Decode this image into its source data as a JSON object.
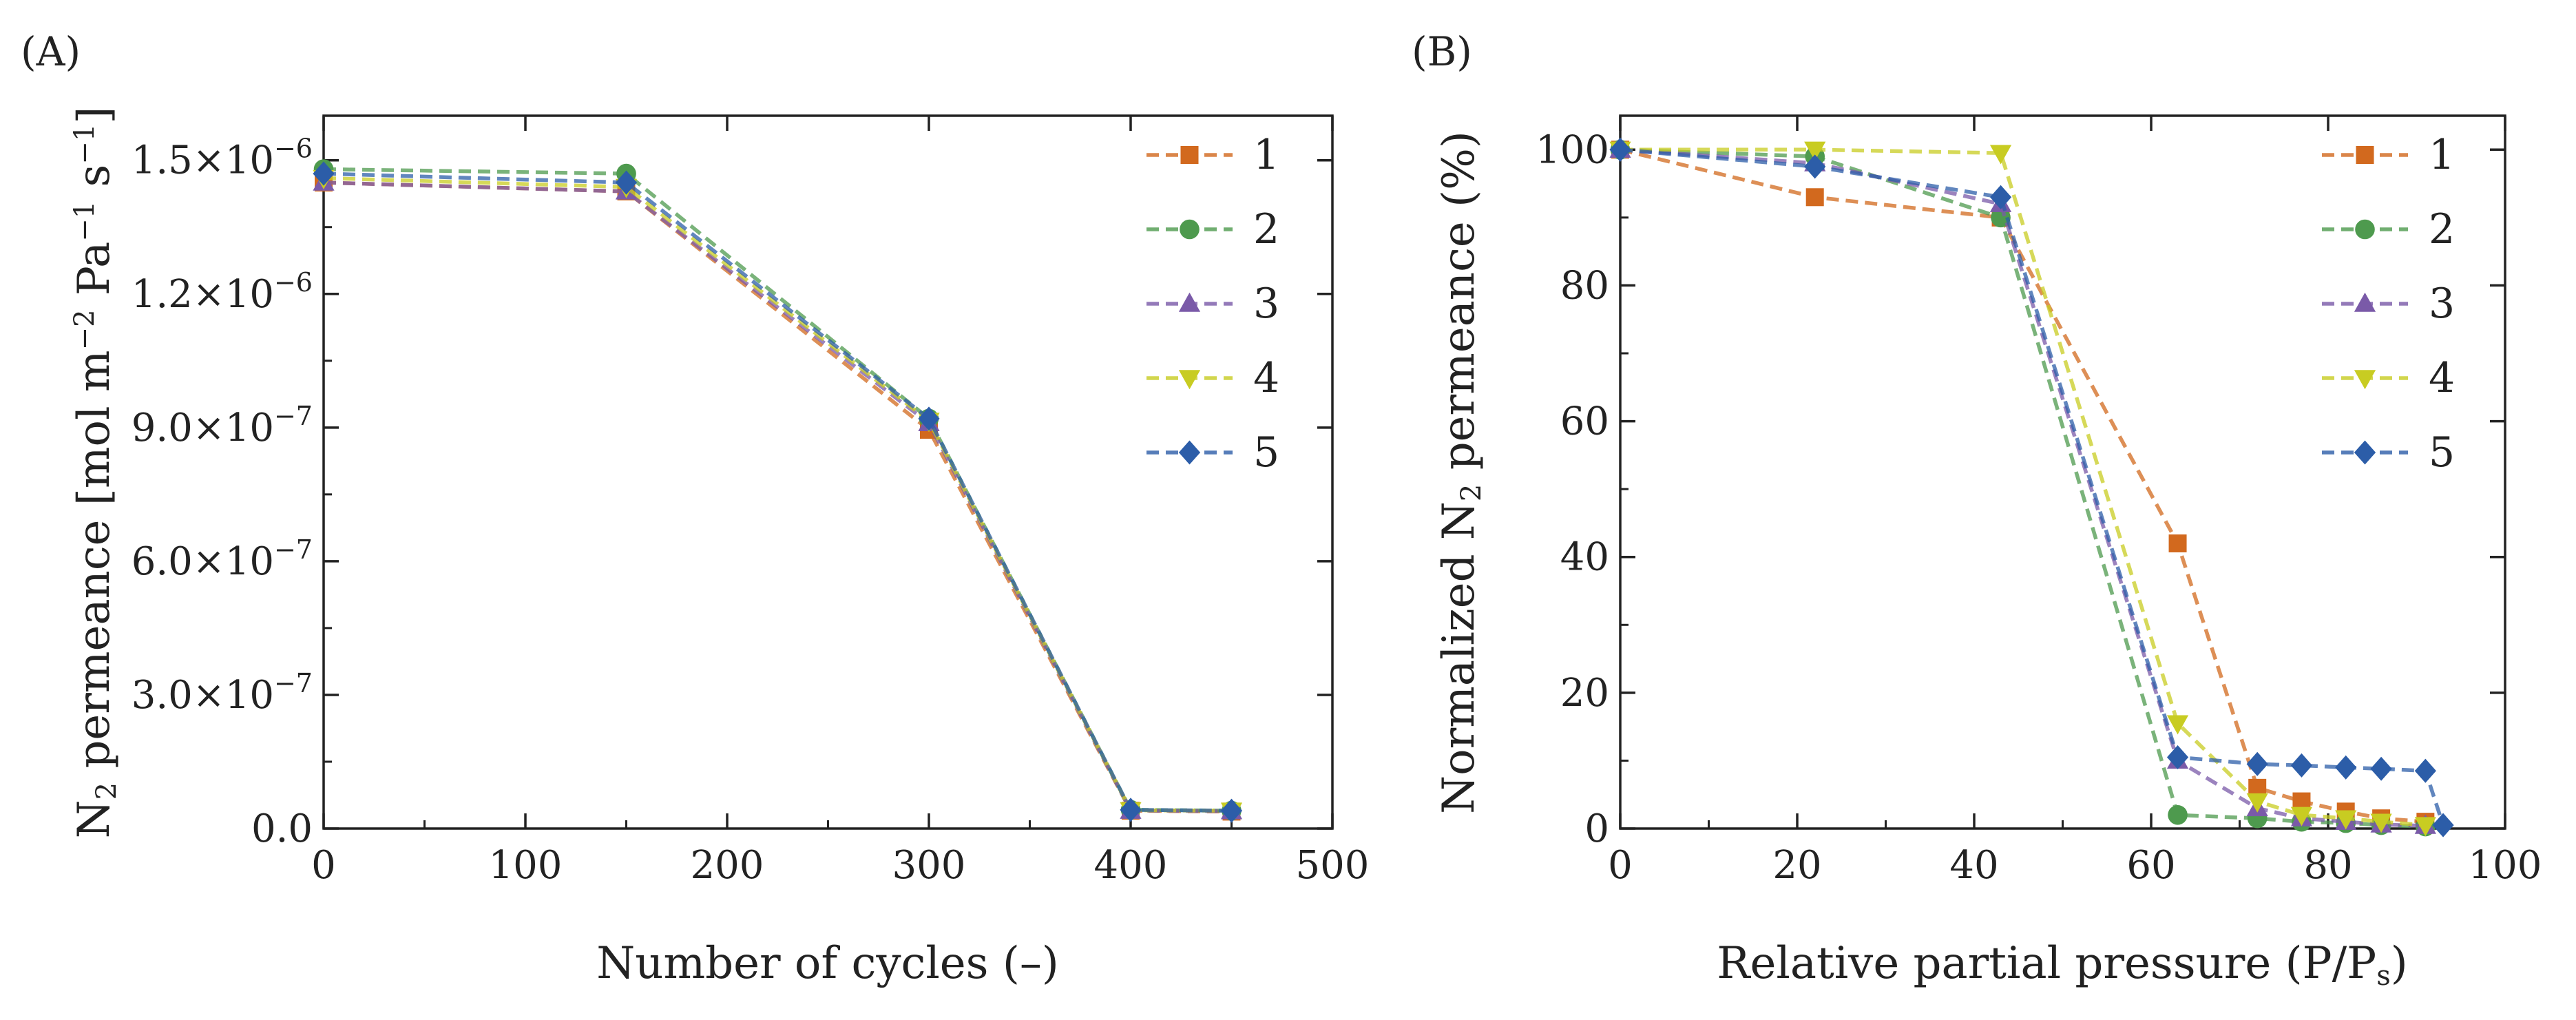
{
  "figure": {
    "panels": [
      {
        "id": "A",
        "letter": "(A)",
        "xlabel": "Number of cycles (–)",
        "ylabel_parts": [
          "N",
          "2",
          " permeance [mol m",
          "−2",
          " Pa",
          "−1",
          " s",
          "−1",
          "]"
        ],
        "xticks": [
          "0",
          "100",
          "200",
          "300",
          "400",
          "500"
        ],
        "yticks": [
          "0.0",
          "3.0×10",
          "6.0×10",
          "9.0×10",
          "1.2×10",
          "1.5×10"
        ],
        "ytick_exponents": [
          "",
          "−7",
          "−7",
          "−7",
          "−6",
          "−6"
        ]
      },
      {
        "id": "B",
        "letter": "(B)",
        "xlabel_parts": [
          "Relative partial pressure (P/P",
          "s",
          ")"
        ],
        "ylabel_parts": [
          "Normalized N",
          "2",
          " permeance (%)"
        ],
        "xticks": [
          "0",
          "20",
          "40",
          "60",
          "80",
          "100"
        ],
        "yticks": [
          "0",
          "20",
          "40",
          "60",
          "80",
          "100"
        ]
      }
    ]
  },
  "chart_data": [
    {
      "type": "line",
      "panel": "A",
      "title": "",
      "xlabel": "Number of cycles (–)",
      "ylabel": "N2 permeance [mol m−2 Pa−1 s−1]",
      "xlim": [
        0,
        500
      ],
      "ylim": [
        0,
        1.6e-06
      ],
      "grid": false,
      "legend_position": "top-right",
      "series": [
        {
          "name": "1",
          "color": "#D2691E",
          "marker": "square",
          "x": [
            0,
            150,
            300,
            400,
            450
          ],
          "y": [
            1.45e-06,
            1.43e-06,
            8.95e-07,
            4e-08,
            3.8e-08
          ]
        },
        {
          "name": "2",
          "color": "#4E9A4E",
          "marker": "circle",
          "x": [
            0,
            150,
            300,
            400,
            450
          ],
          "y": [
            1.48e-06,
            1.47e-06,
            9.2e-07,
            4.2e-08,
            4e-08
          ]
        },
        {
          "name": "3",
          "color": "#7A5AA8",
          "marker": "triangle-up",
          "x": [
            0,
            150,
            300,
            400,
            450
          ],
          "y": [
            1.45e-06,
            1.43e-06,
            9.1e-07,
            4e-08,
            3.9e-08
          ]
        },
        {
          "name": "4",
          "color": "#C8CC22",
          "marker": "triangle-down",
          "x": [
            0,
            150,
            300,
            400,
            450
          ],
          "y": [
            1.46e-06,
            1.44e-06,
            9.15e-07,
            4.1e-08,
            4e-08
          ]
        },
        {
          "name": "5",
          "color": "#2C5DA8",
          "marker": "diamond",
          "x": [
            0,
            150,
            300,
            400,
            450
          ],
          "y": [
            1.47e-06,
            1.45e-06,
            9.2e-07,
            4.2e-08,
            4e-08
          ]
        }
      ]
    },
    {
      "type": "line",
      "panel": "B",
      "title": "",
      "xlabel": "Relative partial pressure (P/Ps)",
      "ylabel": "Normalized N2 permeance (%)",
      "xlim": [
        0,
        100
      ],
      "ylim": [
        0,
        105
      ],
      "grid": false,
      "legend_position": "top-right",
      "series": [
        {
          "name": "1",
          "color": "#D2691E",
          "marker": "square",
          "x": [
            0,
            22,
            43,
            63,
            72,
            77,
            82,
            86,
            91
          ],
          "y": [
            100,
            93,
            90,
            42,
            6,
            4,
            2.5,
            1.5,
            1
          ]
        },
        {
          "name": "2",
          "color": "#4E9A4E",
          "marker": "circle",
          "x": [
            0,
            22,
            43,
            63,
            72,
            77,
            82,
            86,
            91
          ],
          "y": [
            100,
            99,
            90,
            2,
            1.5,
            1,
            0.8,
            0.5,
            0.3
          ]
        },
        {
          "name": "3",
          "color": "#7A5AA8",
          "marker": "triangle-up",
          "x": [
            0,
            22,
            43,
            63,
            72,
            77,
            82,
            86,
            91
          ],
          "y": [
            100,
            98,
            92,
            10,
            3,
            1.5,
            1,
            0.6,
            0.4
          ]
        },
        {
          "name": "4",
          "color": "#C8CC22",
          "marker": "triangle-down",
          "x": [
            0,
            22,
            43,
            63,
            72,
            77,
            82,
            86,
            91
          ],
          "y": [
            100,
            100,
            99.5,
            15.5,
            4,
            2,
            1.5,
            1,
            0.5
          ]
        },
        {
          "name": "5",
          "color": "#2C5DA8",
          "marker": "diamond",
          "x": [
            0,
            22,
            43,
            63,
            72,
            77,
            82,
            86,
            91,
            93
          ],
          "y": [
            100,
            97.5,
            93,
            10.5,
            9.5,
            9.3,
            9,
            8.8,
            8.5,
            0.5
          ]
        }
      ]
    }
  ]
}
